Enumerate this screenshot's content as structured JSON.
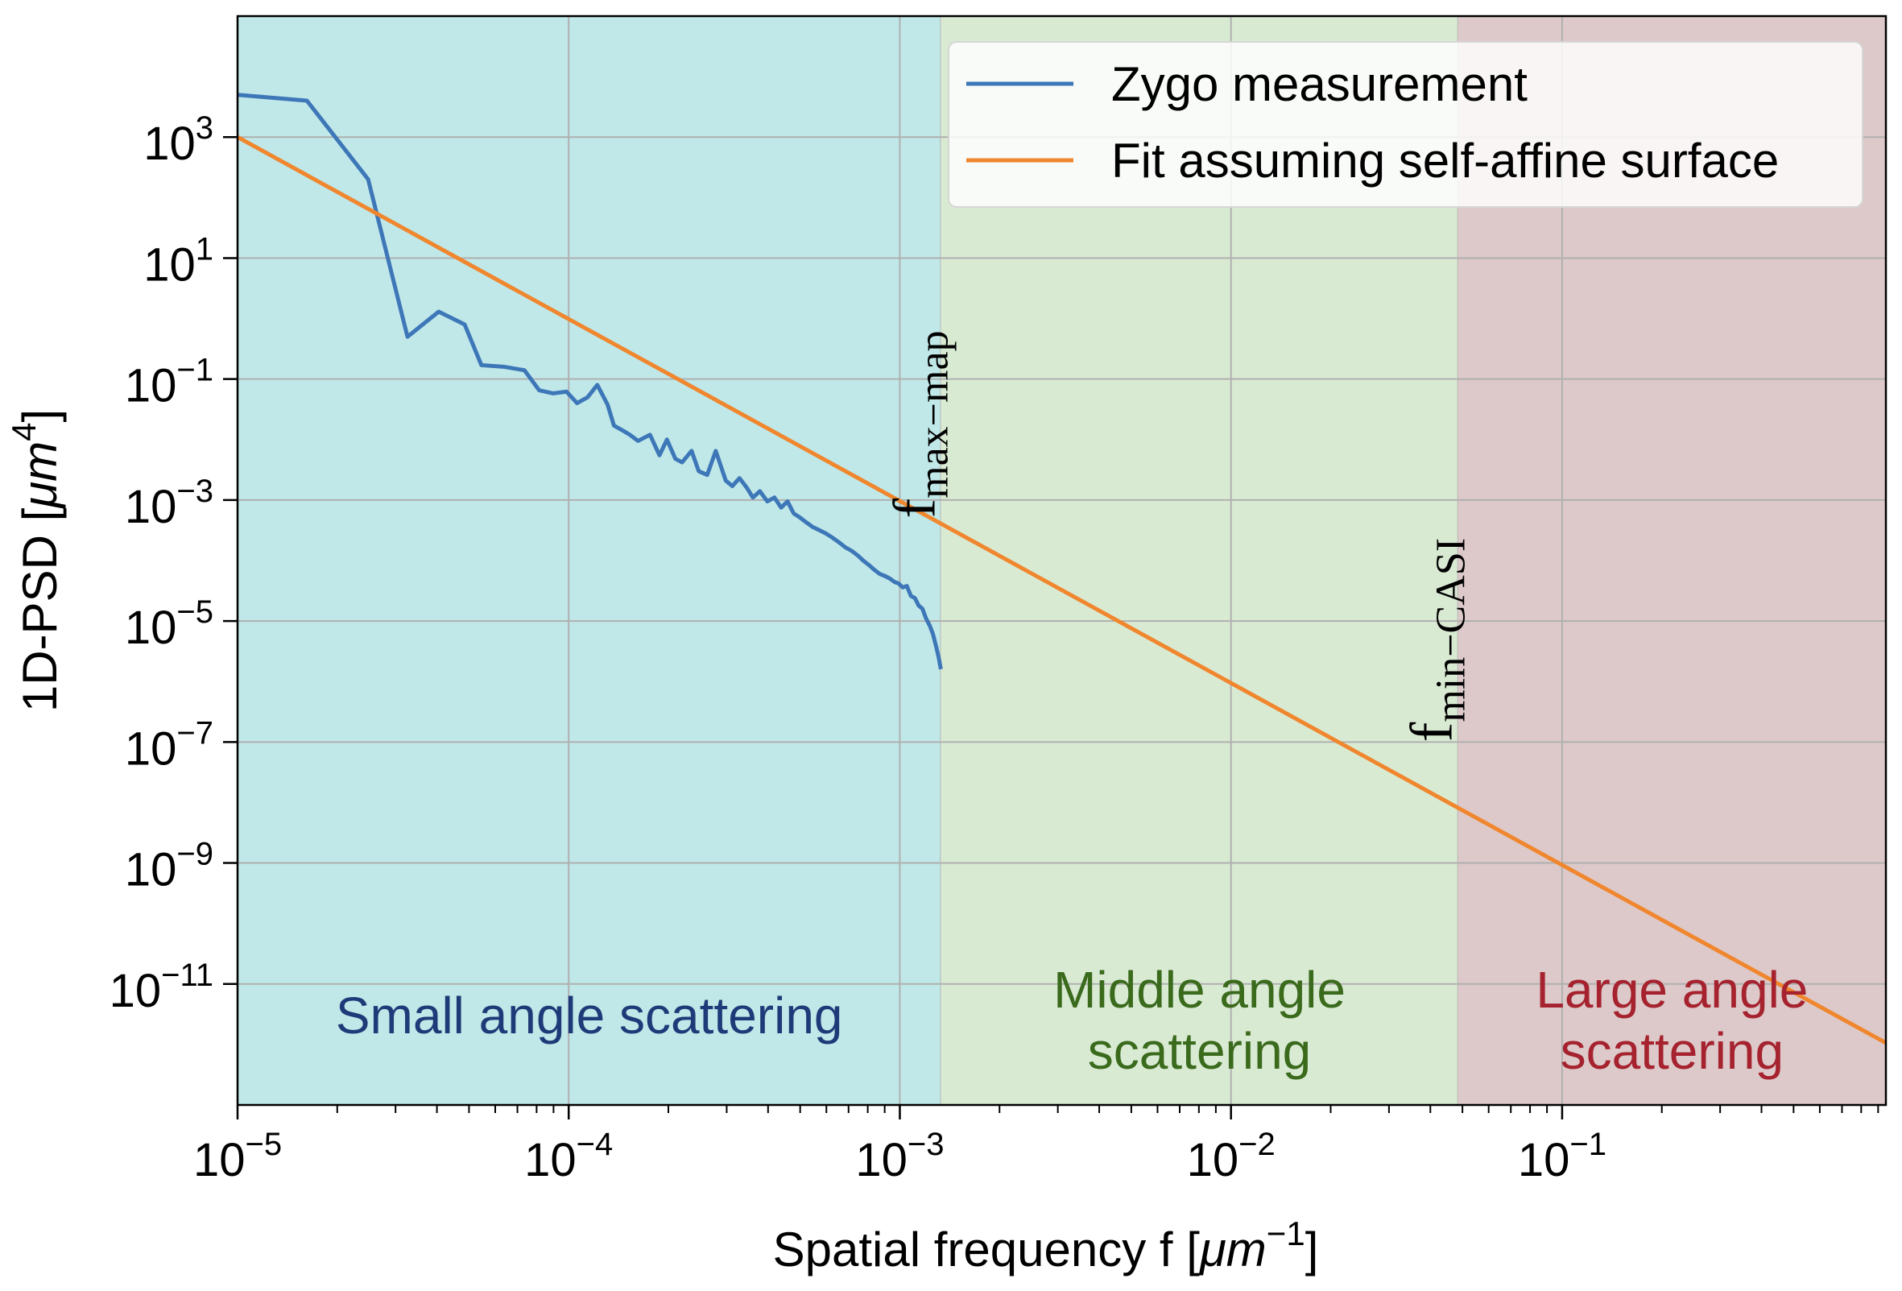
{
  "chart_data": {
    "type": "line",
    "x_scale": "log",
    "y_scale": "log",
    "xlim": [
      1e-05,
      0.95
    ],
    "ylim": [
      1e-13,
      100000.0
    ],
    "xlabel_prefix": "Spatial frequency f [",
    "xlabel_unit": "μm",
    "xlabel_unit_exp": "−1",
    "xlabel_suffix": "]",
    "ylabel_prefix": "1D-PSD [",
    "ylabel_unit": "μm",
    "ylabel_unit_exp": "4",
    "ylabel_suffix": "]",
    "grid": true,
    "x_ticks": [
      {
        "value": 1e-05,
        "base": "10",
        "exp": "−5"
      },
      {
        "value": 0.0001,
        "base": "10",
        "exp": "−4"
      },
      {
        "value": 0.001,
        "base": "10",
        "exp": "−3"
      },
      {
        "value": 0.01,
        "base": "10",
        "exp": "−2"
      },
      {
        "value": 0.1,
        "base": "10",
        "exp": "−1"
      }
    ],
    "y_ticks": [
      {
        "value": 1e-11,
        "base": "10",
        "exp": "−11"
      },
      {
        "value": 1e-09,
        "base": "10",
        "exp": "−9"
      },
      {
        "value": 1e-07,
        "base": "10",
        "exp": "−7"
      },
      {
        "value": 1e-05,
        "base": "10",
        "exp": "−5"
      },
      {
        "value": 0.001,
        "base": "10",
        "exp": "−3"
      },
      {
        "value": 0.1,
        "base": "10",
        "exp": "−1"
      },
      {
        "value": 10.0,
        "base": "10",
        "exp": "1"
      },
      {
        "value": 1000.0,
        "base": "10",
        "exp": "3"
      }
    ],
    "regions": [
      {
        "name": "Small angle scattering",
        "x_start": 1e-05,
        "x_end": 0.00133,
        "fill": "#c0e8e8",
        "label_lines": [
          "Small angle scattering"
        ],
        "label_color": "#1f3a78",
        "label_y": 3e-12
      },
      {
        "name": "Middle angle scattering",
        "x_start": 0.00133,
        "x_end": 0.0485,
        "fill": "#d9ead3",
        "label_lines": [
          "Middle angle",
          "scattering"
        ],
        "label_color": "#3a6a1c",
        "label_y": 3e-12
      },
      {
        "name": "Large angle scattering",
        "x_start": 0.0485,
        "x_end": 0.95,
        "fill": "#ddc9c9",
        "label_lines": [
          "Large angle",
          "scattering"
        ],
        "label_color": "#a5222e",
        "label_y": 3e-12
      }
    ],
    "boundary_annotations": [
      {
        "name": "f-max-map",
        "x": 0.00133,
        "y_start": 0.0005,
        "main": "f",
        "sub": "max−map"
      },
      {
        "name": "f-min-casi",
        "x": 0.0485,
        "y_start": 1e-07,
        "main": "f",
        "sub": "min−CASI"
      }
    ],
    "series": [
      {
        "name": "Zygo measurement",
        "color": "#3d77b8",
        "x": [
          1e-05,
          1.62e-05,
          2.48e-05,
          3.26e-05,
          4.05e-05,
          4.85e-05,
          5.45e-05,
          6.35e-05,
          7.35e-05,
          8.15e-05,
          8.98e-05,
          9.85e-05,
          0.000106,
          0.000114,
          0.000122,
          0.000131,
          0.000137,
          0.000146,
          0.000153,
          0.000162,
          0.000176,
          0.000188,
          0.000198,
          0.00021,
          0.00022,
          0.000235,
          0.000247,
          0.000262,
          0.000278,
          0.000298,
          0.000312,
          0.000328,
          0.000345,
          0.00036,
          0.000378,
          0.000398,
          0.000418,
          0.000438,
          0.000458,
          0.000478,
          0.000498,
          0.000518,
          0.000545,
          0.00057,
          0.000598,
          0.000625,
          0.000655,
          0.000685,
          0.000715,
          0.000748,
          0.000775,
          0.000805,
          0.000838,
          0.00087,
          0.000905,
          0.000935,
          0.000965,
          0.00099,
          0.00102,
          0.00105,
          0.00108,
          0.00111,
          0.00114,
          0.00117,
          0.0012,
          0.00123,
          0.00126,
          0.00129,
          0.00131,
          0.00133
        ],
        "y": [
          5000,
          4000,
          200,
          0.5,
          1.3,
          0.8,
          0.17,
          0.16,
          0.14,
          0.065,
          0.058,
          0.062,
          0.04,
          0.05,
          0.08,
          0.038,
          0.017,
          0.014,
          0.012,
          0.0095,
          0.012,
          0.0055,
          0.01,
          0.0048,
          0.0042,
          0.0065,
          0.003,
          0.0026,
          0.0065,
          0.0021,
          0.0017,
          0.0023,
          0.0016,
          0.0011,
          0.0014,
          0.00095,
          0.0011,
          0.00075,
          0.00095,
          0.0006,
          0.00052,
          0.00044,
          0.00036,
          0.00032,
          0.00028,
          0.00024,
          0.0002,
          0.000165,
          0.000145,
          0.00012,
          0.0001,
          8.5e-05,
          7e-05,
          6e-05,
          5.5e-05,
          5e-05,
          4.4e-05,
          4.2e-05,
          3.6e-05,
          3.8e-05,
          2.6e-05,
          2.4e-05,
          1.8e-05,
          1.6e-05,
          1.1e-05,
          8.5e-06,
          6e-06,
          3.6e-06,
          2.5e-06,
          1.6e-06
        ]
      },
      {
        "name": "Fit assuming self-affine surface",
        "color": "#f0862d",
        "x": [
          1e-05,
          0.95
        ],
        "y": [
          1000,
          1.06e-12
        ]
      }
    ]
  }
}
